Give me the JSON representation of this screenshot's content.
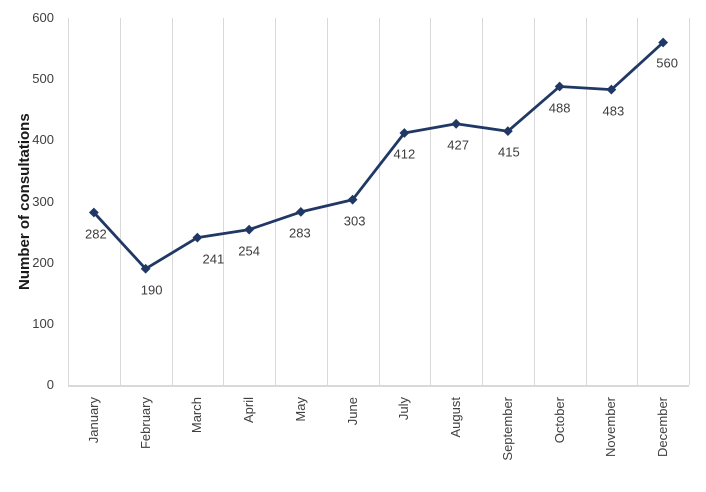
{
  "chart_data": {
    "type": "line",
    "title": "",
    "xlabel": "",
    "ylabel": "Number of consultations",
    "categories": [
      "January",
      "February",
      "March",
      "April",
      "May",
      "June",
      "July",
      "August",
      "September",
      "October",
      "November",
      "December"
    ],
    "series": [
      {
        "name": "Number of consultations",
        "values": [
          282,
          190,
          241,
          254,
          283,
          303,
          412,
          427,
          415,
          488,
          483,
          560
        ]
      }
    ],
    "data_labels_shown": true,
    "ylim": [
      0,
      600
    ],
    "y_ticks": [
      0,
      100,
      200,
      300,
      400,
      500,
      600
    ],
    "grid": "vertical category gridlines only",
    "legend": "none",
    "marker": "diamond",
    "colors": {
      "line": "#203864",
      "marker": "#203864",
      "gridline": "#D9D9D9",
      "axis_line": "#D9D9D9",
      "tick_text": "#404040",
      "data_label_text": "#3d3d3d",
      "axis_title_text": "#1a1a1a",
      "background": "#FFFFFF"
    }
  }
}
